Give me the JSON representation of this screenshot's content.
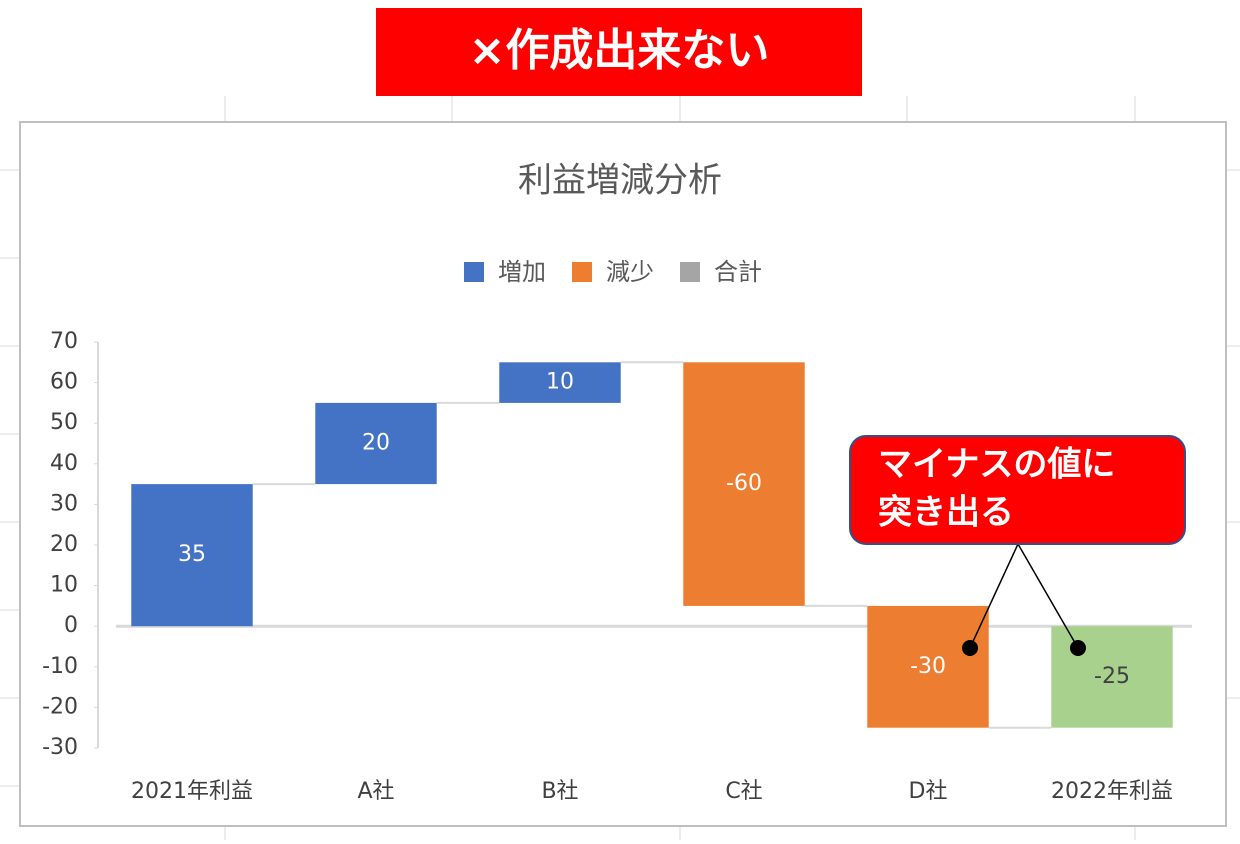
{
  "banner": "×作成出来ない",
  "callout": {
    "lines": [
      "マイナスの値に",
      "突き出る"
    ]
  },
  "chart_data": {
    "type": "waterfall",
    "title": "利益増減分析",
    "categories": [
      "2021年利益",
      "A社",
      "B社",
      "C社",
      "D社",
      "2022年利益"
    ],
    "values": [
      35,
      20,
      10,
      -60,
      -30,
      -25
    ],
    "is_total": [
      false,
      false,
      false,
      false,
      false,
      true
    ],
    "bar_colors": [
      "#4472c4",
      "#4472c4",
      "#4472c4",
      "#ed7d31",
      "#ed7d31",
      "#a9d18e"
    ],
    "label_colors": [
      "#ffffff",
      "#ffffff",
      "#ffffff",
      "#ffffff",
      "#ffffff",
      "#404040"
    ],
    "legend": [
      {
        "name": "増加",
        "color": "#4472c4"
      },
      {
        "name": "減少",
        "color": "#ed7d31"
      },
      {
        "name": "合計",
        "color": "#a5a5a5"
      }
    ],
    "ylim": [
      -30,
      70
    ],
    "yticks": [
      -30,
      -20,
      -10,
      0,
      10,
      20,
      30,
      40,
      50,
      60,
      70
    ]
  }
}
